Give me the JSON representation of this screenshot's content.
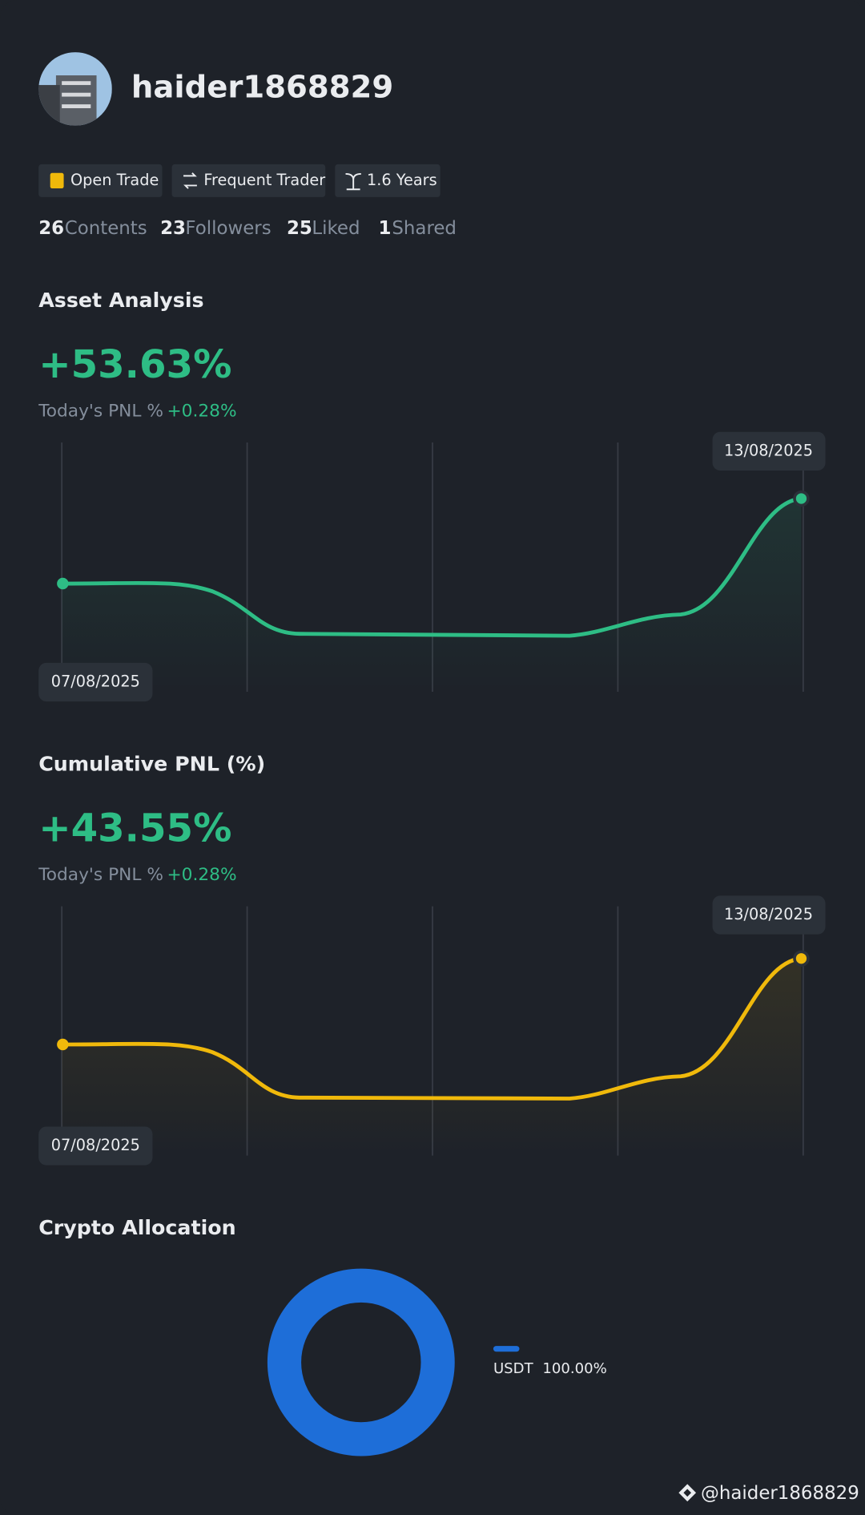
{
  "profile": {
    "username": "haider1868829",
    "tags": [
      "Open Trade",
      "Frequent Trader",
      "1.6 Years"
    ],
    "stats": [
      {
        "count": 26,
        "label": "Contents"
      },
      {
        "count": 23,
        "label": "Followers"
      },
      {
        "count": 25,
        "label": "Liked"
      },
      {
        "count": 1,
        "label": "Shared"
      }
    ]
  },
  "asset_analysis": {
    "title": "Asset Analysis",
    "value": "+53.63%",
    "today_label": "Today's PNL %",
    "today_value": "+0.28%",
    "start_date": "07/08/2025",
    "end_date": "13/08/2025",
    "line_color": "#2ebd85"
  },
  "cumulative_pnl": {
    "title": "Cumulative PNL (%)",
    "value": "+43.55%",
    "today_label": "Today's PNL %",
    "today_value": "+0.28%",
    "start_date": "07/08/2025",
    "end_date": "13/08/2025",
    "line_color": "#f0b90b"
  },
  "crypto_allocation": {
    "title": "Crypto Allocation",
    "items": [
      {
        "name": "USDT",
        "value": 100,
        "value_label": "100.00%",
        "color": "#1e6ed8"
      }
    ]
  },
  "watermark": "@haider1868829"
}
